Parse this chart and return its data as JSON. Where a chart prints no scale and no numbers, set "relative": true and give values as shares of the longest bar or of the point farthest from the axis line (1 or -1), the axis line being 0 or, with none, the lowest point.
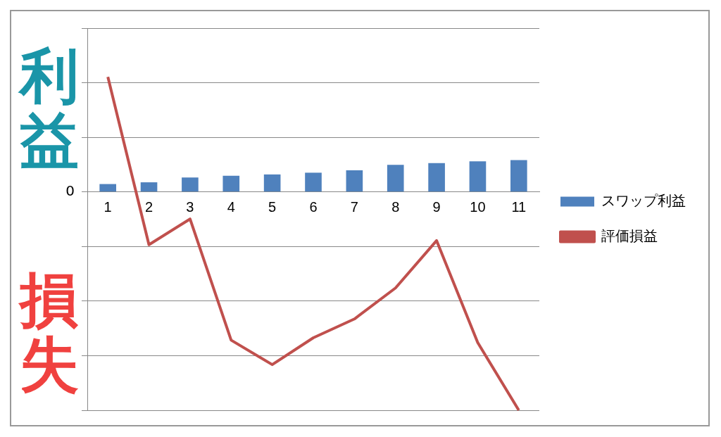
{
  "chart_data": {
    "type": "bar",
    "relative": true,
    "categories": [
      "1",
      "2",
      "3",
      "4",
      "5",
      "6",
      "7",
      "8",
      "9",
      "10",
      "11"
    ],
    "series": [
      {
        "name": "スワップ利益",
        "color": "#4f81bd",
        "values": [
          0.036,
          0.044,
          0.066,
          0.074,
          0.08,
          0.088,
          0.099,
          0.124,
          0.132,
          0.14,
          0.146
        ]
      },
      {
        "name": "評価損益",
        "type": "line",
        "color": "#c0504d",
        "values": [
          0.527,
          -0.242,
          -0.124,
          -0.679,
          -0.791,
          -0.668,
          -0.582,
          -0.44,
          -0.223,
          -0.69,
          -1
        ]
      }
    ],
    "annotations": [
      "利益",
      "損失",
      "0"
    ],
    "grid": "y",
    "legend": "right",
    "marker": "none",
    "line_style": "solid"
  }
}
